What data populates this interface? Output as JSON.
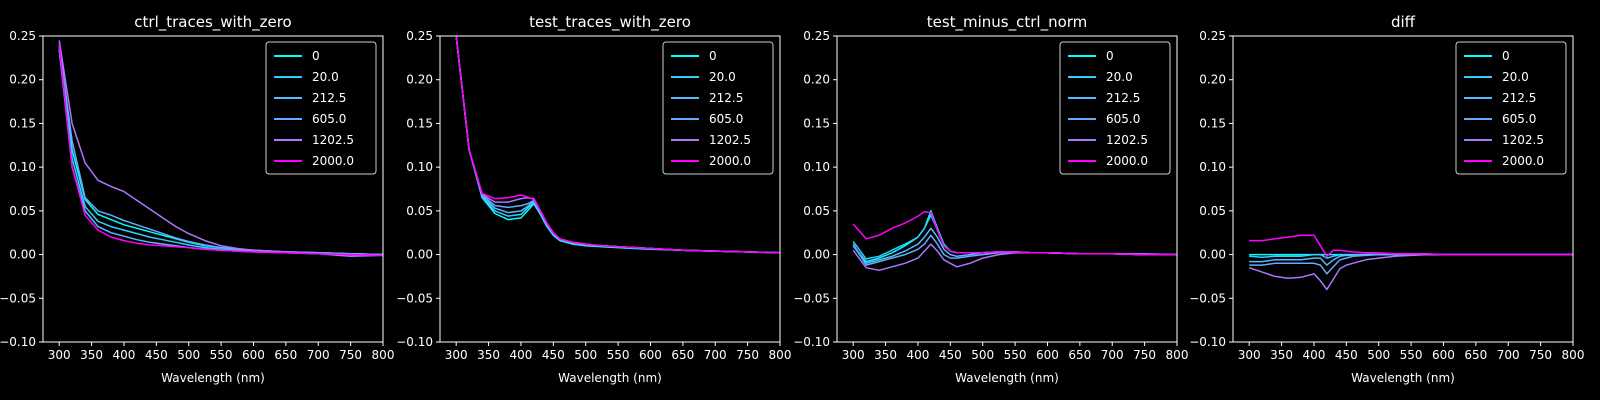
{
  "figure": {
    "background": "#000000",
    "foreground": "#ffffff"
  },
  "legend_entries": [
    "0",
    "20.0",
    "212.5",
    "605.0",
    "1202.5",
    "2000.0"
  ],
  "series_colors": [
    "#00ffff",
    "#33ccff",
    "#55bbff",
    "#66aaff",
    "#aa77ff",
    "#ff00ff"
  ],
  "chart_data": [
    {
      "type": "line",
      "title": "ctrl_traces_with_zero",
      "xlabel": "Wavelength (nm)",
      "ylabel": "",
      "xlim": [
        275,
        800
      ],
      "ylim": [
        -0.1,
        0.25
      ],
      "xticks": [
        300,
        350,
        400,
        450,
        500,
        550,
        600,
        650,
        700,
        750,
        800
      ],
      "yticks": [
        -0.1,
        -0.05,
        0.0,
        0.05,
        0.1,
        0.15,
        0.2,
        0.25
      ],
      "ytick_labels": [
        "−0.10",
        "−0.05",
        "0.00",
        "0.05",
        "0.10",
        "0.15",
        "0.20",
        "0.25"
      ],
      "legend_position": "upper-right",
      "grid": false,
      "x": [
        300,
        320,
        340,
        360,
        380,
        400,
        420,
        440,
        460,
        480,
        500,
        525,
        550,
        575,
        600,
        650,
        700,
        750,
        800
      ],
      "series": [
        {
          "name": "0",
          "values": [
            0.24,
            0.12,
            0.063,
            0.046,
            0.04,
            0.034,
            0.03,
            0.026,
            0.022,
            0.018,
            0.014,
            0.01,
            0.008,
            0.006,
            0.005,
            0.003,
            0.002,
            0.001,
            0.0
          ]
        },
        {
          "name": "20.0",
          "values": [
            0.235,
            0.11,
            0.055,
            0.038,
            0.032,
            0.028,
            0.024,
            0.02,
            0.017,
            0.014,
            0.011,
            0.008,
            0.006,
            0.005,
            0.004,
            0.003,
            0.002,
            0.001,
            0.0
          ]
        },
        {
          "name": "212.5",
          "values": [
            0.235,
            0.1,
            0.05,
            0.032,
            0.025,
            0.021,
            0.017,
            0.014,
            0.012,
            0.01,
            0.008,
            0.006,
            0.005,
            0.004,
            0.003,
            0.002,
            0.001,
            0.001,
            0.0
          ]
        },
        {
          "name": "605.0",
          "values": [
            0.24,
            0.13,
            0.065,
            0.05,
            0.045,
            0.039,
            0.034,
            0.029,
            0.024,
            0.019,
            0.015,
            0.011,
            0.008,
            0.006,
            0.005,
            0.003,
            0.002,
            0.001,
            0.0
          ]
        },
        {
          "name": "1202.5",
          "values": [
            0.245,
            0.15,
            0.105,
            0.085,
            0.078,
            0.072,
            0.062,
            0.052,
            0.042,
            0.032,
            0.024,
            0.016,
            0.01,
            0.007,
            0.005,
            0.003,
            0.001,
            -0.002,
            -0.001
          ]
        },
        {
          "name": "2000.0",
          "values": [
            0.24,
            0.1,
            0.045,
            0.028,
            0.02,
            0.016,
            0.013,
            0.011,
            0.01,
            0.009,
            0.008,
            0.006,
            0.005,
            0.004,
            0.003,
            0.002,
            0.001,
            0.0,
            -0.001
          ]
        }
      ]
    },
    {
      "type": "line",
      "title": "test_traces_with_zero",
      "xlabel": "Wavelength (nm)",
      "ylabel": "",
      "xlim": [
        275,
        800
      ],
      "ylim": [
        -0.1,
        0.25
      ],
      "xticks": [
        300,
        350,
        400,
        450,
        500,
        550,
        600,
        650,
        700,
        750,
        800
      ],
      "yticks": [
        -0.1,
        -0.05,
        0.0,
        0.05,
        0.1,
        0.15,
        0.2,
        0.25
      ],
      "ytick_labels": [
        "−0.10",
        "−0.05",
        "0.00",
        "0.05",
        "0.10",
        "0.15",
        "0.20",
        "0.25"
      ],
      "legend_position": "upper-right",
      "grid": false,
      "x": [
        300,
        320,
        340,
        360,
        380,
        400,
        410,
        420,
        430,
        440,
        450,
        460,
        480,
        500,
        525,
        550,
        575,
        600,
        650,
        700,
        750,
        800
      ],
      "series": [
        {
          "name": "0",
          "values": [
            0.25,
            0.12,
            0.065,
            0.047,
            0.04,
            0.042,
            0.05,
            0.058,
            0.046,
            0.032,
            0.022,
            0.016,
            0.012,
            0.01,
            0.009,
            0.008,
            0.007,
            0.006,
            0.005,
            0.004,
            0.003,
            0.002
          ]
        },
        {
          "name": "20.0",
          "values": [
            0.25,
            0.12,
            0.066,
            0.05,
            0.044,
            0.046,
            0.053,
            0.06,
            0.047,
            0.033,
            0.023,
            0.017,
            0.013,
            0.011,
            0.01,
            0.009,
            0.008,
            0.007,
            0.005,
            0.004,
            0.003,
            0.002
          ]
        },
        {
          "name": "212.5",
          "values": [
            0.25,
            0.12,
            0.067,
            0.053,
            0.048,
            0.05,
            0.055,
            0.061,
            0.048,
            0.034,
            0.024,
            0.017,
            0.013,
            0.011,
            0.01,
            0.009,
            0.008,
            0.007,
            0.005,
            0.004,
            0.003,
            0.002
          ]
        },
        {
          "name": "605.0",
          "values": [
            0.25,
            0.12,
            0.068,
            0.056,
            0.054,
            0.056,
            0.058,
            0.062,
            0.049,
            0.035,
            0.024,
            0.018,
            0.013,
            0.011,
            0.01,
            0.009,
            0.008,
            0.007,
            0.005,
            0.004,
            0.003,
            0.002
          ]
        },
        {
          "name": "1202.5",
          "values": [
            0.25,
            0.12,
            0.069,
            0.06,
            0.06,
            0.064,
            0.065,
            0.064,
            0.05,
            0.036,
            0.025,
            0.018,
            0.014,
            0.012,
            0.01,
            0.009,
            0.008,
            0.007,
            0.005,
            0.004,
            0.003,
            0.002
          ]
        },
        {
          "name": "2000.0",
          "values": [
            0.25,
            0.12,
            0.07,
            0.064,
            0.065,
            0.068,
            0.066,
            0.063,
            0.05,
            0.036,
            0.025,
            0.018,
            0.014,
            0.012,
            0.01,
            0.009,
            0.008,
            0.007,
            0.005,
            0.004,
            0.003,
            0.002
          ]
        }
      ]
    },
    {
      "type": "line",
      "title": "test_minus_ctrl_norm",
      "xlabel": "Wavelength (nm)",
      "ylabel": "",
      "xlim": [
        275,
        800
      ],
      "ylim": [
        -0.1,
        0.25
      ],
      "xticks": [
        300,
        350,
        400,
        450,
        500,
        550,
        600,
        650,
        700,
        750,
        800
      ],
      "yticks": [
        -0.1,
        -0.05,
        0.0,
        0.05,
        0.1,
        0.15,
        0.2,
        0.25
      ],
      "ytick_labels": [
        "−0.10",
        "−0.05",
        "0.00",
        "0.05",
        "0.10",
        "0.15",
        "0.20",
        "0.25"
      ],
      "legend_position": "upper-right",
      "grid": false,
      "x": [
        300,
        320,
        340,
        360,
        380,
        400,
        410,
        420,
        430,
        440,
        450,
        460,
        480,
        500,
        525,
        550,
        575,
        600,
        650,
        700,
        750,
        800
      ],
      "series": [
        {
          "name": "0",
          "values": [
            0.01,
            -0.008,
            -0.004,
            0.002,
            0.01,
            0.02,
            0.03,
            0.05,
            0.03,
            0.012,
            0.004,
            0.002,
            0.002,
            0.002,
            0.003,
            0.003,
            0.002,
            0.002,
            0.001,
            0.001,
            0.0,
            0.0
          ]
        },
        {
          "name": "20.0",
          "values": [
            0.015,
            -0.005,
            -0.002,
            0.005,
            0.012,
            0.02,
            0.03,
            0.045,
            0.028,
            0.01,
            0.004,
            0.002,
            0.002,
            0.002,
            0.003,
            0.003,
            0.002,
            0.002,
            0.001,
            0.001,
            0.0,
            0.0
          ]
        },
        {
          "name": "212.5",
          "values": [
            0.01,
            -0.01,
            -0.006,
            -0.002,
            0.004,
            0.012,
            0.02,
            0.03,
            0.02,
            0.006,
            0.0,
            -0.002,
            0.0,
            0.002,
            0.003,
            0.003,
            0.002,
            0.002,
            0.001,
            0.001,
            0.0,
            0.0
          ]
        },
        {
          "name": "605.0",
          "values": [
            0.012,
            -0.012,
            -0.008,
            -0.004,
            0.0,
            0.006,
            0.012,
            0.022,
            0.012,
            0.0,
            -0.004,
            -0.004,
            -0.002,
            0.0,
            0.002,
            0.003,
            0.002,
            0.002,
            0.001,
            0.001,
            0.0,
            0.0
          ]
        },
        {
          "name": "1202.5",
          "values": [
            0.005,
            -0.015,
            -0.018,
            -0.014,
            -0.01,
            -0.004,
            0.004,
            0.012,
            0.004,
            -0.006,
            -0.01,
            -0.014,
            -0.01,
            -0.004,
            0.0,
            0.002,
            0.002,
            0.002,
            0.001,
            0.001,
            0.001,
            0.0
          ]
        },
        {
          "name": "2000.0",
          "values": [
            0.035,
            0.018,
            0.022,
            0.03,
            0.036,
            0.044,
            0.049,
            0.048,
            0.028,
            0.01,
            0.004,
            0.002,
            0.002,
            0.002,
            0.003,
            0.003,
            0.002,
            0.002,
            0.001,
            0.001,
            0.0,
            0.0
          ]
        }
      ]
    },
    {
      "type": "line",
      "title": "diff",
      "xlabel": "Wavelength (nm)",
      "ylabel": "",
      "xlim": [
        275,
        800
      ],
      "ylim": [
        -0.1,
        0.25
      ],
      "xticks": [
        300,
        350,
        400,
        450,
        500,
        550,
        600,
        650,
        700,
        750,
        800
      ],
      "yticks": [
        -0.1,
        -0.05,
        0.0,
        0.05,
        0.1,
        0.15,
        0.2,
        0.25
      ],
      "ytick_labels": [
        "−0.10",
        "−0.05",
        "0.00",
        "0.05",
        "0.10",
        "0.15",
        "0.20",
        "0.25"
      ],
      "legend_position": "upper-right",
      "grid": false,
      "x": [
        300,
        320,
        340,
        360,
        380,
        400,
        410,
        420,
        430,
        440,
        450,
        460,
        480,
        500,
        525,
        550,
        575,
        600,
        650,
        700,
        750,
        800
      ],
      "series": [
        {
          "name": "0",
          "values": [
            0.0,
            0.0,
            0.0,
            0.0,
            0.0,
            0.0,
            0.0,
            0.0,
            0.0,
            0.0,
            0.0,
            0.0,
            0.0,
            0.0,
            0.0,
            0.0,
            0.0,
            0.0,
            0.0,
            0.0,
            0.0,
            0.0
          ]
        },
        {
          "name": "20.0",
          "values": [
            -0.002,
            -0.003,
            -0.002,
            -0.002,
            -0.002,
            0.0,
            0.0,
            -0.004,
            -0.002,
            0.0,
            0.0,
            0.0,
            0.0,
            0.0,
            0.0,
            0.0,
            0.0,
            0.0,
            0.0,
            0.0,
            0.0,
            0.0
          ]
        },
        {
          "name": "212.5",
          "values": [
            -0.008,
            -0.008,
            -0.006,
            -0.006,
            -0.006,
            -0.004,
            -0.004,
            -0.012,
            -0.006,
            -0.002,
            -0.001,
            -0.001,
            0.0,
            0.0,
            0.0,
            0.0,
            0.0,
            0.0,
            0.0,
            0.0,
            0.0,
            0.0
          ]
        },
        {
          "name": "605.0",
          "values": [
            -0.012,
            -0.012,
            -0.01,
            -0.01,
            -0.01,
            -0.01,
            -0.012,
            -0.022,
            -0.014,
            -0.006,
            -0.004,
            -0.002,
            -0.001,
            0.0,
            0.0,
            0.0,
            0.0,
            0.0,
            0.0,
            0.0,
            0.0,
            0.0
          ]
        },
        {
          "name": "1202.5",
          "values": [
            -0.015,
            -0.02,
            -0.025,
            -0.027,
            -0.026,
            -0.022,
            -0.03,
            -0.04,
            -0.028,
            -0.016,
            -0.012,
            -0.01,
            -0.006,
            -0.004,
            -0.002,
            -0.001,
            0.0,
            0.0,
            0.0,
            0.0,
            0.0,
            0.0
          ]
        },
        {
          "name": "2000.0",
          "values": [
            0.016,
            0.016,
            0.018,
            0.02,
            0.022,
            0.022,
            0.01,
            -0.002,
            0.005,
            0.005,
            0.004,
            0.003,
            0.002,
            0.002,
            0.001,
            0.001,
            0.001,
            0.0,
            0.0,
            0.0,
            0.0,
            0.0
          ]
        }
      ]
    }
  ]
}
